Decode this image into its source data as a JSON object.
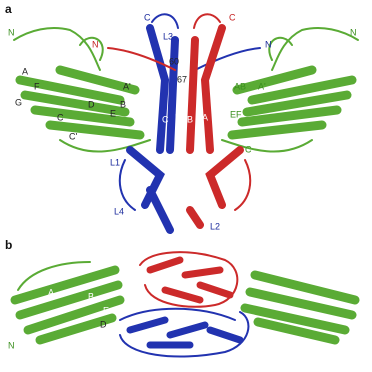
{
  "panel_a": {
    "label": "a",
    "labels": [
      "N",
      "N",
      "C",
      "L3",
      "C",
      "N",
      "N",
      "60",
      "67",
      "A",
      "A'",
      "F",
      "G",
      "D",
      "B",
      "E",
      "C",
      "C'",
      "C",
      "D",
      "B",
      "A",
      "AB",
      "A'",
      "EF",
      "C",
      "L1",
      "L4",
      "L2"
    ]
  },
  "panel_b": {
    "label": "b",
    "labels": [
      "A",
      "B",
      "E",
      "D",
      "N"
    ]
  }
}
